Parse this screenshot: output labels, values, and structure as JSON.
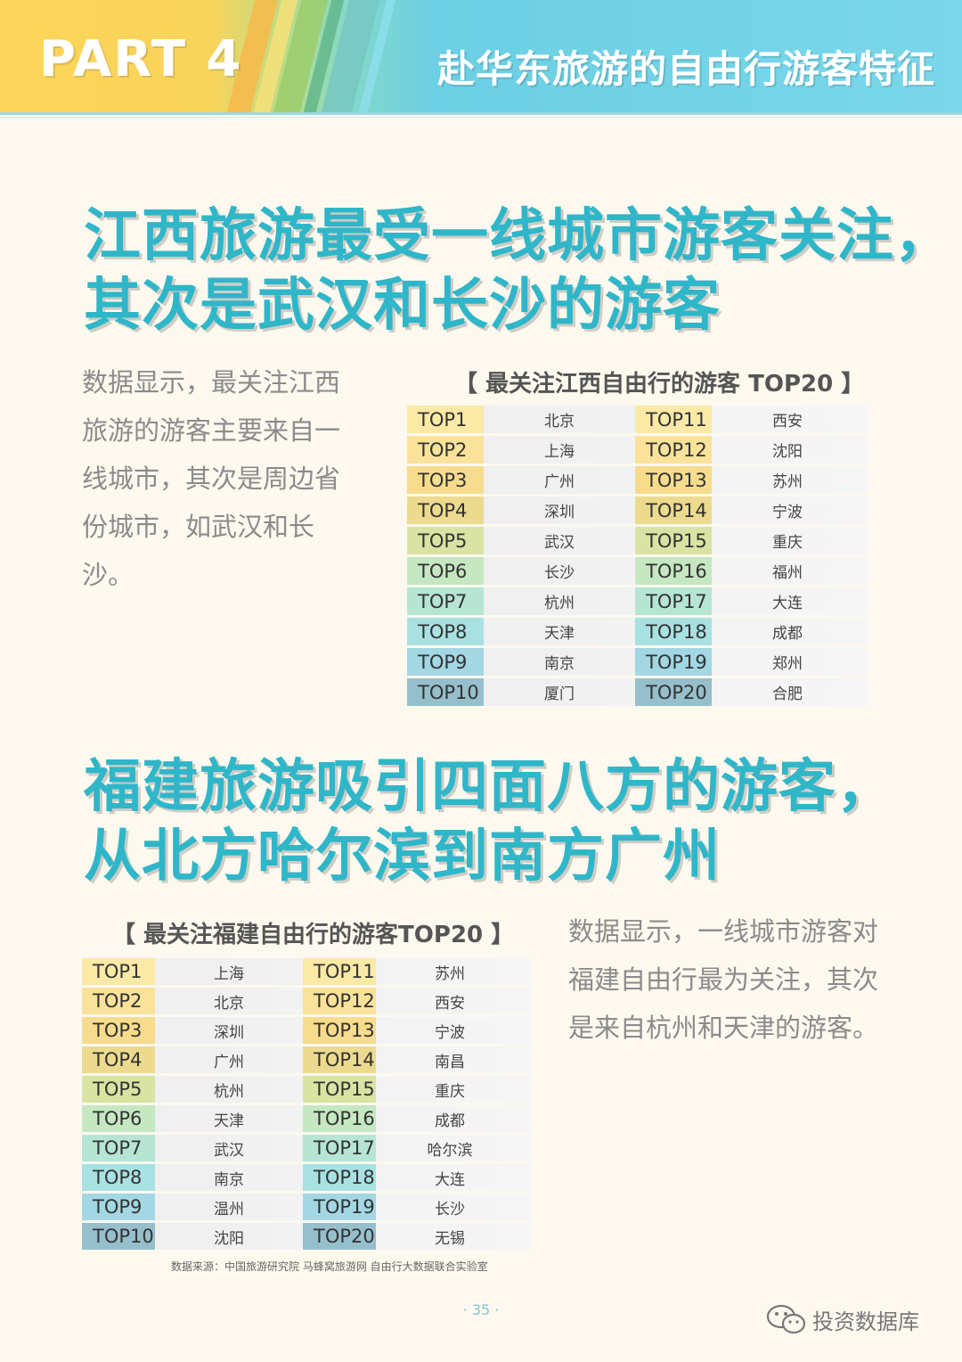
{
  "header": {
    "part_label": "PART 4",
    "title": "赴华东旅游的自由行游客特征"
  },
  "section1": {
    "headline_line1": "江西旅游最受一线城市游客关注，",
    "headline_line2": "其次是武汉和长沙的游客",
    "paragraph": "数据显示，最关注江西旅游的游客主要来自一线城市，其次是周边省份城市，如武汉和长沙。",
    "table_title": "【 最关注江西自由行的游客 TOP20 】",
    "rows": [
      {
        "rank_a": "TOP1",
        "city_a": "北京",
        "rank_b": "TOP11",
        "city_b": "西安"
      },
      {
        "rank_a": "TOP2",
        "city_a": "上海",
        "rank_b": "TOP12",
        "city_b": "沈阳"
      },
      {
        "rank_a": "TOP3",
        "city_a": "广州",
        "rank_b": "TOP13",
        "city_b": "苏州"
      },
      {
        "rank_a": "TOP4",
        "city_a": "深圳",
        "rank_b": "TOP14",
        "city_b": "宁波"
      },
      {
        "rank_a": "TOP5",
        "city_a": "武汉",
        "rank_b": "TOP15",
        "city_b": "重庆"
      },
      {
        "rank_a": "TOP6",
        "city_a": "长沙",
        "rank_b": "TOP16",
        "city_b": "福州"
      },
      {
        "rank_a": "TOP7",
        "city_a": "杭州",
        "rank_b": "TOP17",
        "city_b": "大连"
      },
      {
        "rank_a": "TOP8",
        "city_a": "天津",
        "rank_b": "TOP18",
        "city_b": "成都"
      },
      {
        "rank_a": "TOP9",
        "city_a": "南京",
        "rank_b": "TOP19",
        "city_b": "郑州"
      },
      {
        "rank_a": "TOP10",
        "city_a": "厦门",
        "rank_b": "TOP20",
        "city_b": "合肥"
      }
    ]
  },
  "section2": {
    "headline_line1": "福建旅游吸引四面八方的游客，",
    "headline_line2": "从北方哈尔滨到南方广州",
    "paragraph": "数据显示，一线城市游客对福建自由行最为关注，其次是来自杭州和天津的游客。",
    "table_title": "【 最关注福建自由行的游客TOP20 】",
    "rows": [
      {
        "rank_a": "TOP1",
        "city_a": "上海",
        "rank_b": "TOP11",
        "city_b": "苏州"
      },
      {
        "rank_a": "TOP2",
        "city_a": "北京",
        "rank_b": "TOP12",
        "city_b": "西安"
      },
      {
        "rank_a": "TOP3",
        "city_a": "深圳",
        "rank_b": "TOP13",
        "city_b": "宁波"
      },
      {
        "rank_a": "TOP4",
        "city_a": "广州",
        "rank_b": "TOP14",
        "city_b": "南昌"
      },
      {
        "rank_a": "TOP5",
        "city_a": "杭州",
        "rank_b": "TOP15",
        "city_b": "重庆"
      },
      {
        "rank_a": "TOP6",
        "city_a": "天津",
        "rank_b": "TOP16",
        "city_b": "成都"
      },
      {
        "rank_a": "TOP7",
        "city_a": "武汉",
        "rank_b": "TOP17",
        "city_b": "哈尔滨"
      },
      {
        "rank_a": "TOP8",
        "city_a": "南京",
        "rank_b": "TOP18",
        "city_b": "大连"
      },
      {
        "rank_a": "TOP9",
        "city_a": "温州",
        "rank_b": "TOP19",
        "city_b": "长沙"
      },
      {
        "rank_a": "TOP10",
        "city_a": "沈阳",
        "rank_b": "TOP20",
        "city_b": "无锡"
      }
    ]
  },
  "footer": {
    "source": "数据来源：中国旅游研究院 马蜂窝旅游网 自由行大数据联合实验室",
    "page_number": "· 35 ·",
    "watermark": "投资数据库",
    "watermark_icon": "wechat-icon"
  },
  "colors": {
    "headline": "#2fb6c9",
    "rank_gradient": [
      "#fbe9a6",
      "#fae29a",
      "#f7dc8e",
      "#ecdb8e",
      "#d9e3a4",
      "#c5e7c1",
      "#b6e5d4",
      "#a9e1e2",
      "#a2d7e3",
      "#96bfcc"
    ]
  }
}
